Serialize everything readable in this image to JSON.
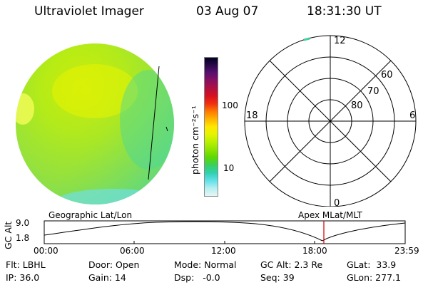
{
  "header": {
    "instrument": "Ultraviolet Imager",
    "date": "03 Aug 07",
    "time": "18:31:30 UT"
  },
  "colorbar": {
    "unit_label": "photon cm⁻²s⁻¹",
    "ticks": [
      "100",
      "10"
    ],
    "colors": [
      "#000022",
      "#2a0a4a",
      "#5a1070",
      "#8a1060",
      "#b01040",
      "#d81020",
      "#f03010",
      "#ff7a00",
      "#ffb400",
      "#ffe800",
      "#e4f400",
      "#b8f000",
      "#8ce400",
      "#5cd800",
      "#38d060",
      "#30d0b0",
      "#60e0e8",
      "#b4f0f0",
      "#e8f4f4"
    ]
  },
  "polar_plot": {
    "hour_labels": {
      "top": "12",
      "left": "18",
      "right": "6",
      "bottom": "0"
    },
    "lat_labels": [
      "60",
      "70",
      "80"
    ]
  },
  "timeline": {
    "y_axis_label": "GC Alt",
    "y_ticks": [
      "9.0",
      "1.8"
    ],
    "left_title": "Geographic Lat/Lon",
    "right_title": "Apex MLat/MLT",
    "x_ticks": [
      "00:00",
      "06:00",
      "12:00",
      "18:00",
      "23:59"
    ],
    "current_marker_color": "#cc0000"
  },
  "status": {
    "flt": "Flt: LBHL",
    "ip": "IP: 36.0",
    "door": "Door: Open",
    "gain": "Gain: 14",
    "mode": "Mode: Normal",
    "dsp": "Dsp:   -0.0",
    "gc_alt": "GC Alt: 2.3 Re",
    "seq": "Seq: 39",
    "glat": "GLat:  33.9",
    "glon": "GLon: 277.1"
  }
}
